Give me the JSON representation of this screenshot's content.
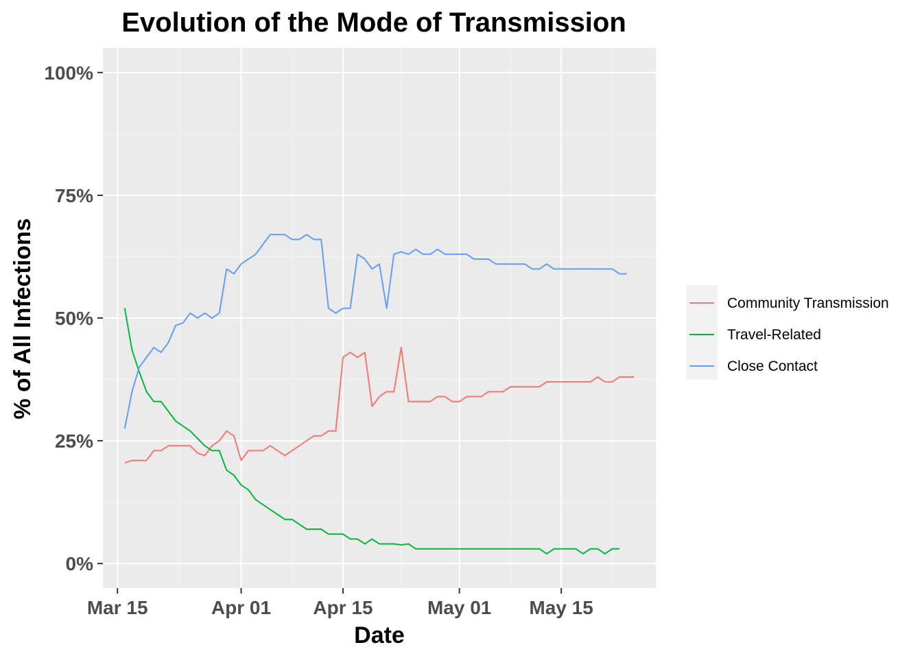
{
  "chart_data": {
    "type": "line",
    "title": "Evolution of the Mode of Transmission",
    "xlabel": "Date",
    "ylabel": "% of All Infections",
    "x_ticks": [
      "Mar 15",
      "Apr 01",
      "Apr 15",
      "May 01",
      "May 15"
    ],
    "x_tick_dates": [
      "2020-03-15",
      "2020-04-01",
      "2020-04-15",
      "2020-05-01",
      "2020-05-15"
    ],
    "y_ticks": [
      "0%",
      "25%",
      "50%",
      "75%",
      "100%"
    ],
    "y_tick_values": [
      0,
      25,
      50,
      75,
      100
    ],
    "xlim": [
      "2020-03-13",
      "2020-05-28"
    ],
    "ylim": [
      -5,
      105
    ],
    "grid": true,
    "legend_position": "right",
    "series": [
      {
        "name": "Community Transmission",
        "color": "#F8766D",
        "points": [
          [
            "2020-03-16",
            20.5
          ],
          [
            "2020-03-17",
            21
          ],
          [
            "2020-03-18",
            21
          ],
          [
            "2020-03-19",
            21
          ],
          [
            "2020-03-20",
            23
          ],
          [
            "2020-03-21",
            23
          ],
          [
            "2020-03-22",
            24
          ],
          [
            "2020-03-23",
            24
          ],
          [
            "2020-03-24",
            24
          ],
          [
            "2020-03-25",
            24
          ],
          [
            "2020-03-26",
            22.5
          ],
          [
            "2020-03-27",
            22
          ],
          [
            "2020-03-28",
            24
          ],
          [
            "2020-03-29",
            25
          ],
          [
            "2020-03-30",
            27
          ],
          [
            "2020-03-31",
            26
          ],
          [
            "2020-04-01",
            21
          ],
          [
            "2020-04-02",
            23
          ],
          [
            "2020-04-03",
            23
          ],
          [
            "2020-04-04",
            23
          ],
          [
            "2020-04-05",
            24
          ],
          [
            "2020-04-06",
            23
          ],
          [
            "2020-04-07",
            22
          ],
          [
            "2020-04-08",
            23
          ],
          [
            "2020-04-09",
            24
          ],
          [
            "2020-04-10",
            25
          ],
          [
            "2020-04-11",
            26
          ],
          [
            "2020-04-12",
            26
          ],
          [
            "2020-04-13",
            27
          ],
          [
            "2020-04-14",
            27
          ],
          [
            "2020-04-15",
            42
          ],
          [
            "2020-04-16",
            43
          ],
          [
            "2020-04-17",
            42
          ],
          [
            "2020-04-18",
            43
          ],
          [
            "2020-04-19",
            32
          ],
          [
            "2020-04-20",
            34
          ],
          [
            "2020-04-21",
            35
          ],
          [
            "2020-04-22",
            35
          ],
          [
            "2020-04-23",
            44
          ],
          [
            "2020-04-24",
            33
          ],
          [
            "2020-04-25",
            33
          ],
          [
            "2020-04-26",
            33
          ],
          [
            "2020-04-27",
            33
          ],
          [
            "2020-04-28",
            34
          ],
          [
            "2020-04-29",
            34
          ],
          [
            "2020-04-30",
            33
          ],
          [
            "2020-05-01",
            33
          ],
          [
            "2020-05-02",
            34
          ],
          [
            "2020-05-03",
            34
          ],
          [
            "2020-05-04",
            34
          ],
          [
            "2020-05-05",
            35
          ],
          [
            "2020-05-06",
            35
          ],
          [
            "2020-05-07",
            35
          ],
          [
            "2020-05-08",
            36
          ],
          [
            "2020-05-09",
            36
          ],
          [
            "2020-05-10",
            36
          ],
          [
            "2020-05-11",
            36
          ],
          [
            "2020-05-12",
            36
          ],
          [
            "2020-05-13",
            37
          ],
          [
            "2020-05-14",
            37
          ],
          [
            "2020-05-15",
            37
          ],
          [
            "2020-05-16",
            37
          ],
          [
            "2020-05-17",
            37
          ],
          [
            "2020-05-18",
            37
          ],
          [
            "2020-05-19",
            37
          ],
          [
            "2020-05-20",
            38
          ],
          [
            "2020-05-21",
            37
          ],
          [
            "2020-05-22",
            37
          ],
          [
            "2020-05-23",
            38
          ],
          [
            "2020-05-24",
            38
          ],
          [
            "2020-05-25",
            38
          ]
        ]
      },
      {
        "name": "Travel-Related",
        "color": "#00BA38",
        "points": [
          [
            "2020-03-16",
            52
          ],
          [
            "2020-03-17",
            43.5
          ],
          [
            "2020-03-18",
            39
          ],
          [
            "2020-03-19",
            35
          ],
          [
            "2020-03-20",
            33
          ],
          [
            "2020-03-21",
            33
          ],
          [
            "2020-03-22",
            31
          ],
          [
            "2020-03-23",
            29
          ],
          [
            "2020-03-24",
            28
          ],
          [
            "2020-03-25",
            27
          ],
          [
            "2020-03-26",
            25.5
          ],
          [
            "2020-03-27",
            24
          ],
          [
            "2020-03-28",
            23
          ],
          [
            "2020-03-29",
            23
          ],
          [
            "2020-03-30",
            19
          ],
          [
            "2020-03-31",
            18
          ],
          [
            "2020-04-01",
            16
          ],
          [
            "2020-04-02",
            15
          ],
          [
            "2020-04-03",
            13
          ],
          [
            "2020-04-04",
            12
          ],
          [
            "2020-04-05",
            11
          ],
          [
            "2020-04-06",
            10
          ],
          [
            "2020-04-07",
            9
          ],
          [
            "2020-04-08",
            9
          ],
          [
            "2020-04-09",
            8
          ],
          [
            "2020-04-10",
            7
          ],
          [
            "2020-04-11",
            7
          ],
          [
            "2020-04-12",
            7
          ],
          [
            "2020-04-13",
            6
          ],
          [
            "2020-04-14",
            6
          ],
          [
            "2020-04-15",
            6
          ],
          [
            "2020-04-16",
            5
          ],
          [
            "2020-04-17",
            5
          ],
          [
            "2020-04-18",
            4
          ],
          [
            "2020-04-19",
            5
          ],
          [
            "2020-04-20",
            4
          ],
          [
            "2020-04-21",
            4
          ],
          [
            "2020-04-22",
            4
          ],
          [
            "2020-04-23",
            3.8
          ],
          [
            "2020-04-24",
            4
          ],
          [
            "2020-04-25",
            3
          ],
          [
            "2020-04-26",
            3
          ],
          [
            "2020-04-27",
            3
          ],
          [
            "2020-04-28",
            3
          ],
          [
            "2020-04-29",
            3
          ],
          [
            "2020-04-30",
            3
          ],
          [
            "2020-05-01",
            3
          ],
          [
            "2020-05-02",
            3
          ],
          [
            "2020-05-03",
            3
          ],
          [
            "2020-05-04",
            3
          ],
          [
            "2020-05-05",
            3
          ],
          [
            "2020-05-06",
            3
          ],
          [
            "2020-05-07",
            3
          ],
          [
            "2020-05-08",
            3
          ],
          [
            "2020-05-09",
            3
          ],
          [
            "2020-05-10",
            3
          ],
          [
            "2020-05-11",
            3
          ],
          [
            "2020-05-12",
            3
          ],
          [
            "2020-05-13",
            2
          ],
          [
            "2020-05-14",
            3
          ],
          [
            "2020-05-15",
            3
          ],
          [
            "2020-05-16",
            3
          ],
          [
            "2020-05-17",
            3
          ],
          [
            "2020-05-18",
            2
          ],
          [
            "2020-05-19",
            3
          ],
          [
            "2020-05-20",
            3
          ],
          [
            "2020-05-21",
            2
          ],
          [
            "2020-05-22",
            3
          ],
          [
            "2020-05-23",
            3
          ]
        ]
      },
      {
        "name": "Close Contact",
        "color": "#619CFF",
        "points": [
          [
            "2020-03-16",
            27.5
          ],
          [
            "2020-03-17",
            35
          ],
          [
            "2020-03-18",
            40
          ],
          [
            "2020-03-19",
            42
          ],
          [
            "2020-03-20",
            44
          ],
          [
            "2020-03-21",
            43
          ],
          [
            "2020-03-22",
            45
          ],
          [
            "2020-03-23",
            48.5
          ],
          [
            "2020-03-24",
            49
          ],
          [
            "2020-03-25",
            51
          ],
          [
            "2020-03-26",
            50
          ],
          [
            "2020-03-27",
            51
          ],
          [
            "2020-03-28",
            50
          ],
          [
            "2020-03-29",
            51
          ],
          [
            "2020-03-30",
            60
          ],
          [
            "2020-03-31",
            59
          ],
          [
            "2020-04-01",
            61
          ],
          [
            "2020-04-02",
            62
          ],
          [
            "2020-04-03",
            63
          ],
          [
            "2020-04-04",
            65
          ],
          [
            "2020-04-05",
            67
          ],
          [
            "2020-04-06",
            67
          ],
          [
            "2020-04-07",
            67
          ],
          [
            "2020-04-08",
            66
          ],
          [
            "2020-04-09",
            66
          ],
          [
            "2020-04-10",
            67
          ],
          [
            "2020-04-11",
            66
          ],
          [
            "2020-04-12",
            66
          ],
          [
            "2020-04-13",
            52
          ],
          [
            "2020-04-14",
            51
          ],
          [
            "2020-04-15",
            52
          ],
          [
            "2020-04-16",
            52
          ],
          [
            "2020-04-17",
            63
          ],
          [
            "2020-04-18",
            62
          ],
          [
            "2020-04-19",
            60
          ],
          [
            "2020-04-20",
            61
          ],
          [
            "2020-04-21",
            52
          ],
          [
            "2020-04-22",
            63
          ],
          [
            "2020-04-23",
            63.5
          ],
          [
            "2020-04-24",
            63
          ],
          [
            "2020-04-25",
            64
          ],
          [
            "2020-04-26",
            63
          ],
          [
            "2020-04-27",
            63
          ],
          [
            "2020-04-28",
            64
          ],
          [
            "2020-04-29",
            63
          ],
          [
            "2020-04-30",
            63
          ],
          [
            "2020-05-01",
            63
          ],
          [
            "2020-05-02",
            63
          ],
          [
            "2020-05-03",
            62
          ],
          [
            "2020-05-04",
            62
          ],
          [
            "2020-05-05",
            62
          ],
          [
            "2020-05-06",
            61
          ],
          [
            "2020-05-07",
            61
          ],
          [
            "2020-05-08",
            61
          ],
          [
            "2020-05-09",
            61
          ],
          [
            "2020-05-10",
            61
          ],
          [
            "2020-05-11",
            60
          ],
          [
            "2020-05-12",
            60
          ],
          [
            "2020-05-13",
            61
          ],
          [
            "2020-05-14",
            60
          ],
          [
            "2020-05-15",
            60
          ],
          [
            "2020-05-16",
            60
          ],
          [
            "2020-05-17",
            60
          ],
          [
            "2020-05-18",
            60
          ],
          [
            "2020-05-19",
            60
          ],
          [
            "2020-05-20",
            60
          ],
          [
            "2020-05-21",
            60
          ],
          [
            "2020-05-22",
            60
          ],
          [
            "2020-05-23",
            59
          ],
          [
            "2020-05-24",
            59
          ]
        ]
      }
    ]
  },
  "colors": {
    "panel_background": "#EBEBEB",
    "grid_major": "#FFFFFF",
    "grid_minor": "#F5F5F5",
    "tick_text": "#4D4D4D",
    "legend_background": "#F2F2F2"
  }
}
